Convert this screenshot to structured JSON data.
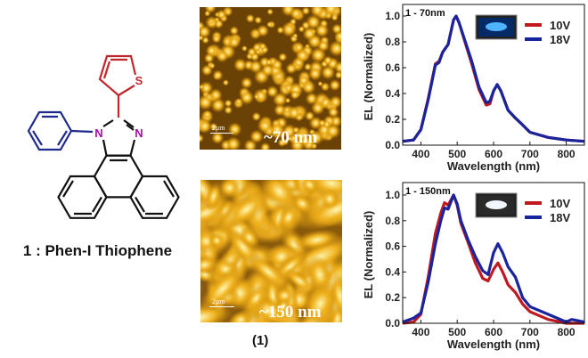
{
  "molecule": {
    "label": "1 : Phen-I Thiophene",
    "atoms": {
      "sulfur": "S",
      "nitrogen_1": "N",
      "nitrogen_2": "N"
    },
    "colors": {
      "thiophene": "#c0272d",
      "phenyl": "#1f2a8c",
      "nitrogen": "#a0129b",
      "core": "#111111"
    }
  },
  "afm": {
    "panel_label": "(1)",
    "images": [
      {
        "thickness": "~70 nm",
        "scale_bar": "2μm"
      },
      {
        "thickness": "~150 nm",
        "scale_bar": "2μm"
      }
    ]
  },
  "chart_data": [
    {
      "type": "line",
      "annotation": "1 - 70nm",
      "xlabel": "Wavelength (nm)",
      "ylabel": "EL (Normalized)",
      "xlim": [
        350,
        850
      ],
      "ylim": [
        0,
        1.09
      ],
      "xticks": [
        "400",
        "500",
        "600",
        "700",
        "800"
      ],
      "yticks": [
        "0.0",
        "0.2",
        "0.4",
        "0.6",
        "0.8",
        "1.0"
      ],
      "legend_position": "top-right",
      "inset": "blue-emission-device-photo",
      "x": [
        350,
        380,
        400,
        420,
        440,
        450,
        460,
        475,
        490,
        497,
        505,
        520,
        540,
        560,
        580,
        590,
        600,
        610,
        620,
        640,
        660,
        675,
        700,
        750,
        800,
        850
      ],
      "series": [
        {
          "name": "10V",
          "color": "#c0191f",
          "values": [
            0.03,
            0.04,
            0.12,
            0.36,
            0.63,
            0.65,
            0.72,
            0.78,
            0.97,
            1.0,
            0.95,
            0.81,
            0.63,
            0.43,
            0.31,
            0.32,
            0.42,
            0.47,
            0.42,
            0.27,
            0.21,
            0.17,
            0.1,
            0.06,
            0.04,
            0.03
          ]
        },
        {
          "name": "18V",
          "color": "#1a249c",
          "values": [
            0.03,
            0.04,
            0.12,
            0.35,
            0.62,
            0.64,
            0.72,
            0.78,
            0.97,
            1.0,
            0.95,
            0.82,
            0.65,
            0.45,
            0.33,
            0.34,
            0.42,
            0.47,
            0.42,
            0.27,
            0.21,
            0.17,
            0.1,
            0.06,
            0.04,
            0.03
          ]
        }
      ]
    },
    {
      "type": "line",
      "annotation": "1 - 150nm",
      "xlabel": "Wavelength (nm)",
      "ylabel": "EL (Normalized)",
      "xlim": [
        350,
        850
      ],
      "ylim": [
        0,
        1.09
      ],
      "xticks": [
        "400",
        "500",
        "600",
        "700",
        "800"
      ],
      "yticks": [
        "0.0",
        "0.2",
        "0.4",
        "0.6",
        "0.8",
        "1.0"
      ],
      "legend_position": "top-right",
      "inset": "white-emission-device-photo",
      "x": [
        350,
        380,
        400,
        420,
        440,
        455,
        465,
        475,
        490,
        500,
        510,
        530,
        550,
        570,
        585,
        600,
        612,
        625,
        640,
        660,
        680,
        700,
        750,
        800,
        815,
        850
      ],
      "series": [
        {
          "name": "10V",
          "color": "#c0191f",
          "values": [
            0.0,
            0.01,
            0.07,
            0.36,
            0.7,
            0.86,
            0.94,
            0.92,
            1.0,
            0.92,
            0.78,
            0.63,
            0.47,
            0.35,
            0.33,
            0.42,
            0.47,
            0.4,
            0.3,
            0.24,
            0.15,
            0.09,
            0.03,
            0.0,
            0.0,
            0.0
          ]
        },
        {
          "name": "18V",
          "color": "#1a249c",
          "values": [
            0.01,
            0.04,
            0.08,
            0.32,
            0.62,
            0.8,
            0.9,
            0.89,
            1.0,
            0.93,
            0.8,
            0.65,
            0.52,
            0.41,
            0.38,
            0.55,
            0.62,
            0.55,
            0.44,
            0.36,
            0.2,
            0.13,
            0.07,
            0.01,
            0.03,
            0.01
          ]
        }
      ]
    }
  ]
}
